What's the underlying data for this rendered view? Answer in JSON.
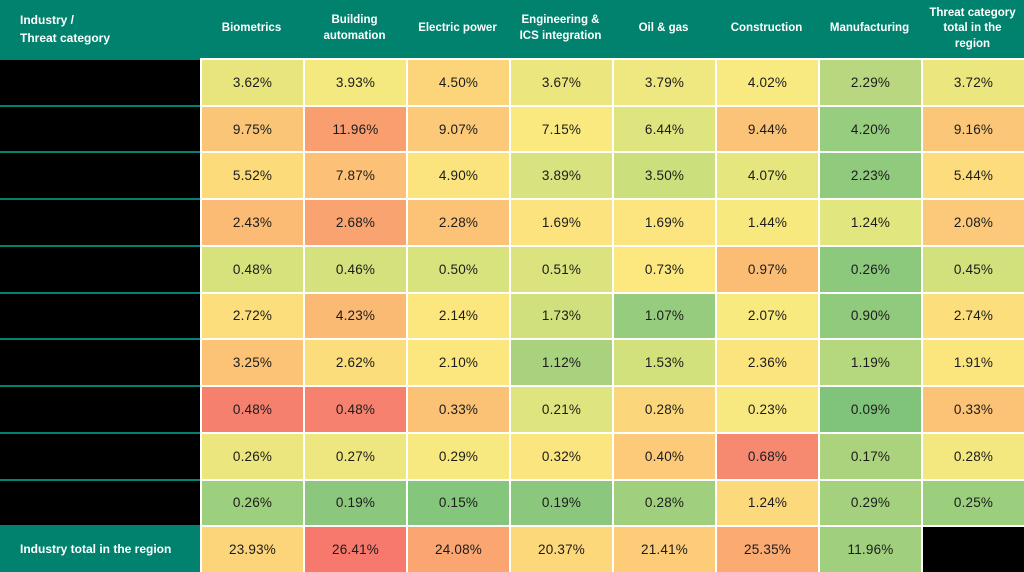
{
  "colors": {
    "header_bg": "#00826E",
    "header_text": "#ffffff",
    "redacted_cell": "#000000",
    "grid_line": "#ffffff",
    "cell_text": "#1b1b1b"
  },
  "chart_data": {
    "type": "heatmap",
    "title": "",
    "corner_header": "Industry /\nThreat category",
    "value_format": "percent",
    "legend": "none",
    "columns": [
      "Biometrics",
      "Building automation",
      "Electric power",
      "Engineering & ICS integration",
      "Oil & gas",
      "Construction",
      "Manufacturing",
      "Threat category total in the region"
    ],
    "rows": [
      {
        "label": "",
        "label_redacted": true,
        "values": [
          3.62,
          3.93,
          4.5,
          3.67,
          3.79,
          4.02,
          2.29,
          3.72
        ],
        "colors": [
          "#e9e57e",
          "#f4e97f",
          "#fcd47a",
          "#ece67e",
          "#efe77f",
          "#f8ea80",
          "#b8d77f",
          "#ece67e"
        ]
      },
      {
        "label": "",
        "label_redacted": true,
        "values": [
          9.75,
          11.96,
          9.07,
          7.15,
          6.44,
          9.44,
          4.2,
          9.16
        ],
        "colors": [
          "#fbc577",
          "#f89e6f",
          "#fbc978",
          "#fae97f",
          "#dfe57e",
          "#fbc377",
          "#97cd7e",
          "#fbc678"
        ]
      },
      {
        "label": "",
        "label_redacted": true,
        "values": [
          5.52,
          7.87,
          4.9,
          3.89,
          3.5,
          4.07,
          2.23,
          5.44
        ],
        "colors": [
          "#fcdb7b",
          "#fcc176",
          "#fbe47d",
          "#d8e27e",
          "#cbdf7d",
          "#e6e67e",
          "#8fca7d",
          "#fcdc7c"
        ]
      },
      {
        "label": "",
        "label_redacted": true,
        "values": [
          2.43,
          2.68,
          2.28,
          1.69,
          1.69,
          1.44,
          1.24,
          2.08
        ],
        "colors": [
          "#fcbb74",
          "#f9a470",
          "#fcc276",
          "#fce37d",
          "#fce47e",
          "#f8e97f",
          "#e2e67e",
          "#fcc97a"
        ]
      },
      {
        "label": "",
        "label_redacted": true,
        "values": [
          0.48,
          0.46,
          0.5,
          0.51,
          0.73,
          0.97,
          0.26,
          0.45
        ],
        "colors": [
          "#d7e27d",
          "#d4e17d",
          "#d9e37e",
          "#dae37e",
          "#fce87f",
          "#fbbd74",
          "#8cc97d",
          "#d3e17d"
        ]
      },
      {
        "label": "",
        "label_redacted": true,
        "values": [
          2.72,
          4.23,
          2.14,
          1.73,
          1.07,
          2.07,
          0.9,
          2.74
        ],
        "colors": [
          "#fcdf7c",
          "#fbba73",
          "#fbe77e",
          "#cfe07d",
          "#96cc7e",
          "#f9ea80",
          "#90ca7d",
          "#fcdf7c"
        ]
      },
      {
        "label": "",
        "label_redacted": true,
        "values": [
          3.25,
          2.62,
          2.1,
          1.12,
          1.53,
          2.36,
          1.19,
          1.91
        ],
        "colors": [
          "#fcc377",
          "#fcdd7c",
          "#fbe77e",
          "#a8d27e",
          "#d3e17d",
          "#fbe37d",
          "#b5d77e",
          "#fbe67e"
        ]
      },
      {
        "label": "",
        "label_redacted": true,
        "values": [
          0.48,
          0.48,
          0.33,
          0.21,
          0.28,
          0.23,
          0.09,
          0.33
        ],
        "colors": [
          "#f5806e",
          "#f5816e",
          "#fbc175",
          "#dfe57e",
          "#fcd67b",
          "#f7e97f",
          "#80c47c",
          "#fcc276"
        ]
      },
      {
        "label": "",
        "label_redacted": true,
        "values": [
          0.26,
          0.27,
          0.29,
          0.32,
          0.4,
          0.68,
          0.17,
          0.28
        ],
        "colors": [
          "#ece67e",
          "#eee77f",
          "#f7e97f",
          "#fbe57e",
          "#fcca79",
          "#f58a70",
          "#abd37e",
          "#f3e87f"
        ]
      },
      {
        "label": "",
        "label_redacted": true,
        "values": [
          0.26,
          0.19,
          0.15,
          0.19,
          0.28,
          1.24,
          0.29,
          0.25
        ],
        "colors": [
          "#9ccf7e",
          "#8bc87d",
          "#84c67c",
          "#8bc87d",
          "#a0d07e",
          "#fcd97b",
          "#a3d17e",
          "#9bcf7e"
        ]
      }
    ],
    "total_row": {
      "label": "Industry total in the region",
      "values": [
        23.93,
        26.41,
        24.08,
        20.37,
        21.41,
        25.35,
        11.96,
        null
      ],
      "values_redacted_last": true,
      "colors": [
        "#fcd57a",
        "#f7786c",
        "#fba671",
        "#fcd87b",
        "#fccc79",
        "#fbab71",
        "#a0d07e",
        "#000000"
      ]
    }
  }
}
